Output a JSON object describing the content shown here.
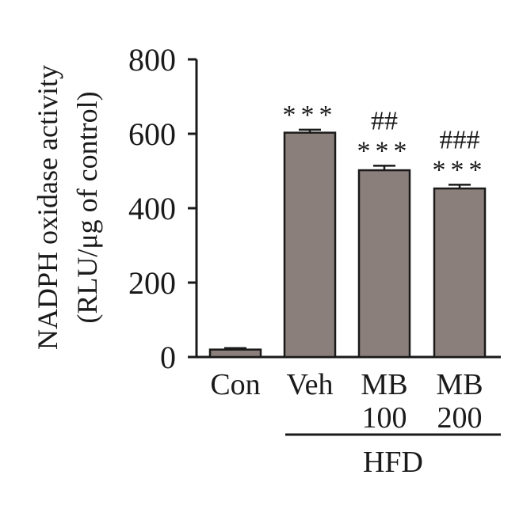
{
  "chart_data": {
    "type": "bar",
    "ylabel_line1": "NADPH oxidase activity",
    "ylabel_line2": "(RLU/μg of control)",
    "ylim": [
      0,
      800
    ],
    "yticks": [
      "0",
      "200",
      "400",
      "600",
      "800"
    ],
    "categories": [
      {
        "line1": "Con",
        "line2": ""
      },
      {
        "line1": "Veh",
        "line2": ""
      },
      {
        "line1": "MB",
        "line2": "100"
      },
      {
        "line1": "MB",
        "line2": "200"
      }
    ],
    "values": [
      20,
      603,
      502,
      453
    ],
    "errors": [
      4,
      8,
      12,
      10
    ],
    "annotations": [
      {
        "top": "",
        "bottom": ""
      },
      {
        "top": "",
        "bottom": "***"
      },
      {
        "top": "##",
        "bottom": "***"
      },
      {
        "top": "###",
        "bottom": "***"
      }
    ],
    "group_label": "HFD",
    "bar_color": "#8a7f7b",
    "grid": false
  }
}
